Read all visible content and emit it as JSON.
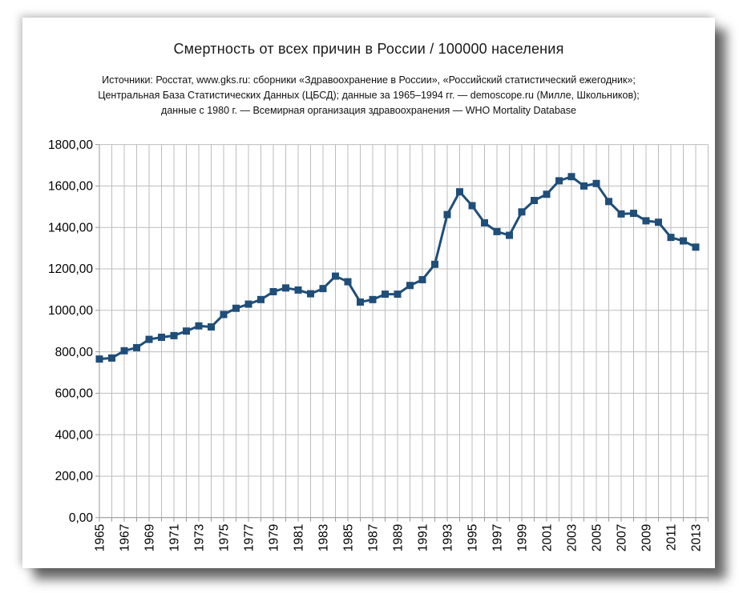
{
  "header": {
    "title": "Смертность от всех причин в России / 100000 населения",
    "subtitle_lines": [
      "Источники: Росстат, www.gks.ru: сборники «Здравоохранение в России», «Российский статистический ежегодник»;",
      "Центральная База Статистических Данных (ЦБСД);  данные за 1965–1994 гг. — demoscope.ru (Милле, Школьников);",
      "данные с 1980 г. — Всемирная организация здравоохранения — WHO Mortality Database"
    ]
  },
  "chart_data": {
    "type": "line",
    "title": "Смертность от всех причин в России / 100000 населения",
    "xlabel": "",
    "ylabel": "",
    "ylim": [
      0,
      1800
    ],
    "ytick_step": 200,
    "y_tick_labels": [
      "0,00",
      "200,00",
      "400,00",
      "600,00",
      "800,00",
      "1000,00",
      "1200,00",
      "1400,00",
      "1600,00",
      "1800,00"
    ],
    "x_tick_labels": [
      "1965",
      "1967",
      "1969",
      "1971",
      "1973",
      "1975",
      "1977",
      "1979",
      "1981",
      "1983",
      "1985",
      "1987",
      "1989",
      "1991",
      "1993",
      "1995",
      "1997",
      "1999",
      "2001",
      "2003",
      "2005",
      "2007",
      "2009",
      "2011",
      "2013"
    ],
    "grid": true,
    "legend": "none",
    "marker": "square",
    "series_color": "#1f4e79",
    "gridline_color": "#bdbdbd",
    "axis_color": "#9a9a9a",
    "x": [
      1965,
      1966,
      1967,
      1968,
      1969,
      1970,
      1971,
      1972,
      1973,
      1974,
      1975,
      1976,
      1977,
      1978,
      1979,
      1980,
      1981,
      1982,
      1983,
      1984,
      1985,
      1986,
      1987,
      1988,
      1989,
      1990,
      1991,
      1992,
      1993,
      1994,
      1995,
      1996,
      1997,
      1998,
      1999,
      2000,
      2001,
      2002,
      2003,
      2004,
      2005,
      2006,
      2007,
      2008,
      2009,
      2010,
      2011,
      2012,
      2013
    ],
    "values": [
      765,
      770,
      805,
      820,
      860,
      870,
      878,
      900,
      925,
      920,
      980,
      1010,
      1030,
      1052,
      1090,
      1108,
      1098,
      1080,
      1105,
      1165,
      1138,
      1040,
      1052,
      1078,
      1078,
      1120,
      1148,
      1222,
      1462,
      1572,
      1505,
      1422,
      1380,
      1362,
      1475,
      1530,
      1560,
      1625,
      1645,
      1600,
      1612,
      1525,
      1465,
      1468,
      1432,
      1425,
      1352,
      1335,
      1305
    ]
  }
}
